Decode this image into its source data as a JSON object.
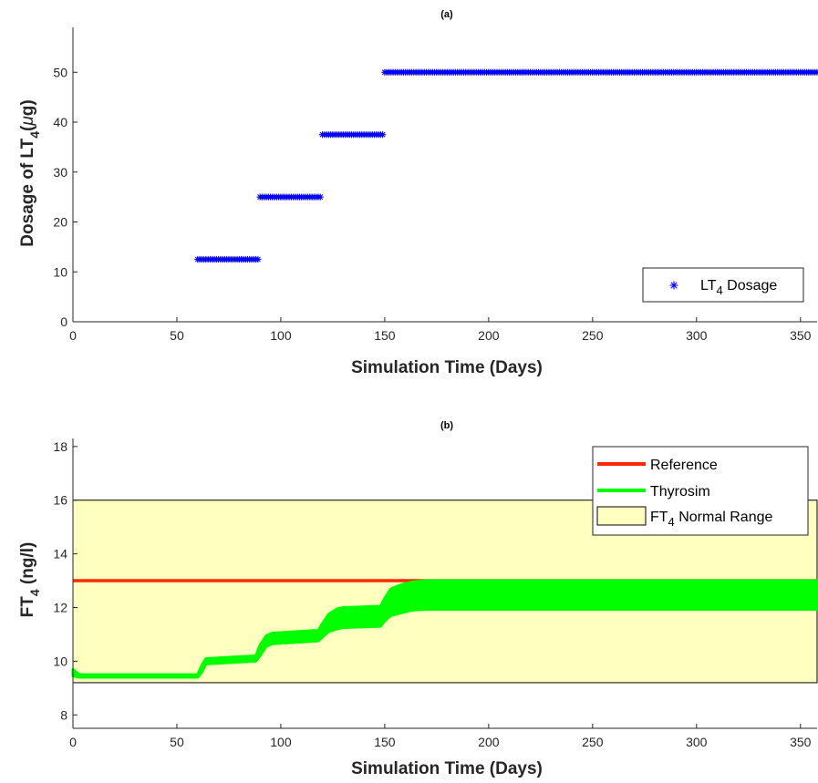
{
  "chart_data": [
    {
      "type": "scatter",
      "title": "(a)",
      "xlabel": "Simulation Time (Days)",
      "ylabel": {
        "pre": "Dosage of LT",
        "sub": "4",
        "post": "(",
        "greek": "μ",
        "post2": "g)"
      },
      "xlim": [
        0,
        358
      ],
      "ylim": [
        0,
        59
      ],
      "x_ticks": [
        0,
        50,
        100,
        150,
        200,
        250,
        300,
        350
      ],
      "y_ticks": [
        0,
        10,
        20,
        30,
        40,
        50
      ],
      "grid": false,
      "legend_position": "bottom-right",
      "series": [
        {
          "name": {
            "pre": "LT",
            "sub": "4",
            "post": " Dosage"
          },
          "color": "#0000ff",
          "marker": "asterisk",
          "segments": [
            {
              "x_start": 60,
              "x_end": 89,
              "value": 12.5
            },
            {
              "x_start": 90,
              "x_end": 119,
              "value": 25
            },
            {
              "x_start": 120,
              "x_end": 149,
              "value": 37.5
            },
            {
              "x_start": 150,
              "x_end": 358,
              "value": 50
            }
          ]
        }
      ]
    },
    {
      "type": "line",
      "title": "(b)",
      "xlabel": "Simulation Time (Days)",
      "ylabel": {
        "pre": "FT",
        "sub": "4",
        "post": " (ng/l)"
      },
      "xlim": [
        0,
        358
      ],
      "ylim": [
        7.5,
        18.3
      ],
      "x_ticks": [
        0,
        50,
        100,
        150,
        200,
        250,
        300,
        350
      ],
      "y_ticks": [
        8,
        10,
        12,
        14,
        16,
        18
      ],
      "grid": false,
      "legend_position": "top-right",
      "normal_range": {
        "name": {
          "pre": "FT",
          "sub": "4",
          "post": " Normal Range"
        },
        "low": 9.2,
        "high": 16,
        "color": "#ffffbf"
      },
      "series": [
        {
          "name": "Reference",
          "color": "#ff2a00",
          "type": "hline",
          "value": 13
        },
        {
          "name": "Thyrosim",
          "color": "#00ff00",
          "type": "band",
          "x": [
            0,
            3,
            60,
            62,
            64,
            88,
            90,
            93,
            96,
            118,
            120,
            123,
            127,
            130,
            148,
            150,
            153,
            158,
            163,
            170,
            180,
            358
          ],
          "lower": [
            9.45,
            9.4,
            9.4,
            9.6,
            9.9,
            10.0,
            10.2,
            10.55,
            10.65,
            10.75,
            10.9,
            11.1,
            11.2,
            11.25,
            11.3,
            11.5,
            11.7,
            11.8,
            11.9,
            11.93,
            11.93,
            11.93
          ],
          "upper": [
            9.7,
            9.5,
            9.5,
            9.85,
            10.1,
            10.2,
            10.6,
            10.95,
            11.05,
            11.15,
            11.4,
            11.75,
            11.95,
            12.0,
            12.05,
            12.35,
            12.7,
            12.85,
            12.95,
            13.0,
            13.0,
            13.0
          ]
        }
      ]
    }
  ]
}
